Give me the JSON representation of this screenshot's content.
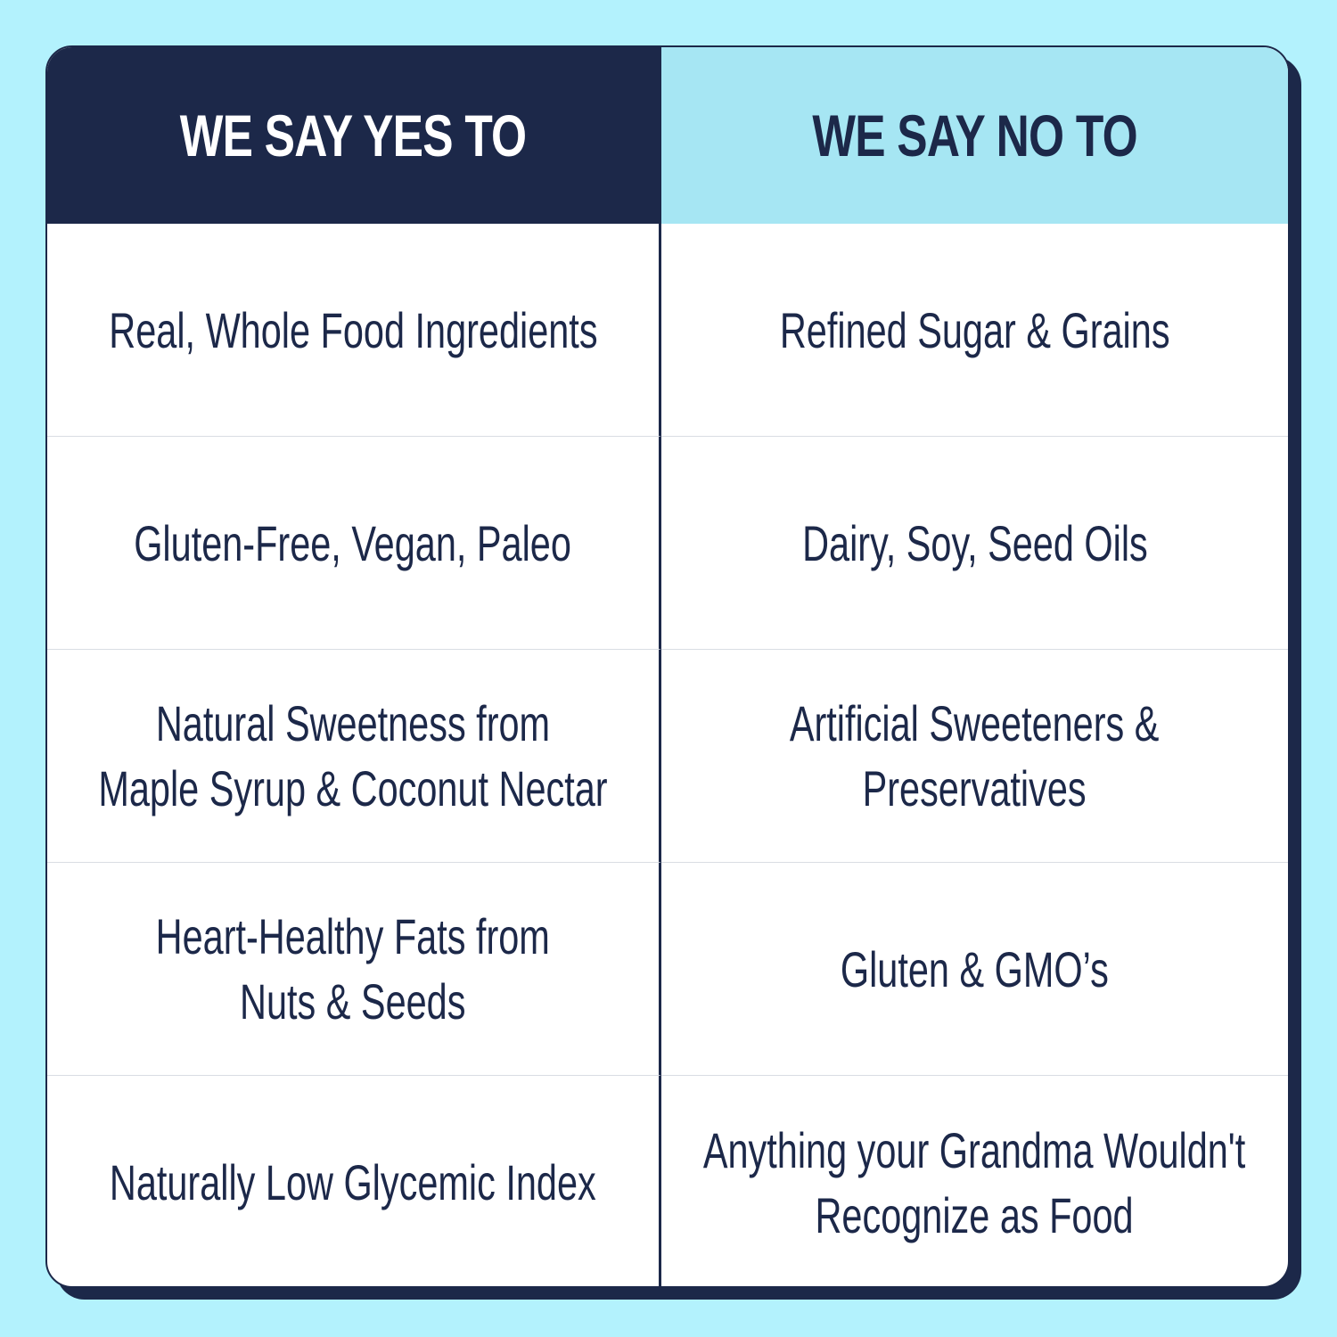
{
  "colors": {
    "background": "#b3f2fd",
    "navy": "#1c2849",
    "light_header": "#a6e6f3"
  },
  "headers": {
    "yes": "WE SAY YES TO",
    "no": "WE SAY NO TO"
  },
  "rows": [
    {
      "yes": [
        "Real, Whole Food Ingredients"
      ],
      "no": [
        "Refined Sugar & Grains"
      ]
    },
    {
      "yes": [
        "Gluten-Free, Vegan, Paleo"
      ],
      "no": [
        "Dairy, Soy, Seed Oils"
      ]
    },
    {
      "yes": [
        "Natural Sweetness from",
        "Maple Syrup & Coconut Nectar"
      ],
      "no": [
        "Artificial Sweeteners &",
        "Preservatives"
      ]
    },
    {
      "yes": [
        "Heart-Healthy Fats from",
        "Nuts & Seeds"
      ],
      "no": [
        "Gluten & GMO’s"
      ]
    },
    {
      "yes": [
        "Naturally Low Glycemic Index"
      ],
      "no": [
        "Anything your Grandma Wouldn't",
        "Recognize as Food"
      ]
    }
  ]
}
